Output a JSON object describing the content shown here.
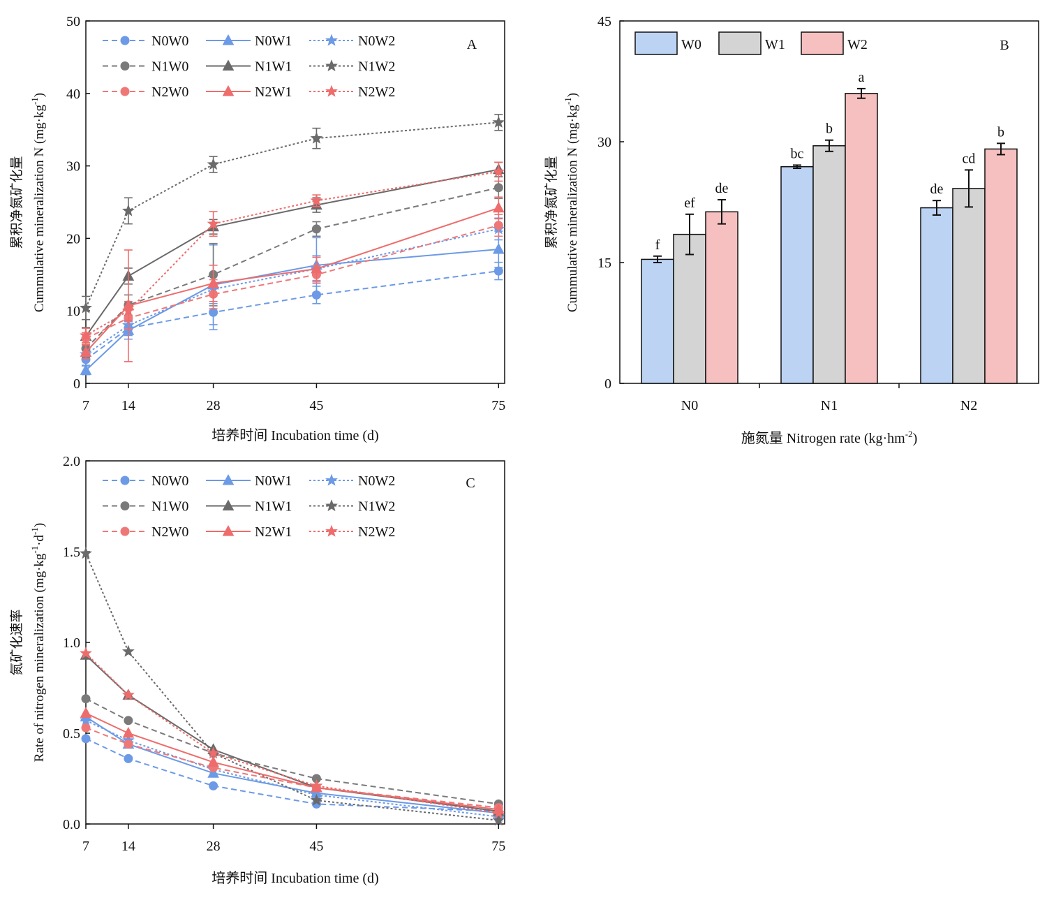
{
  "chart_data": [
    {
      "id": "A",
      "type": "line",
      "panel_label": "A",
      "xlabel": "培养时间 Incubation time (d)",
      "ylabel_cn": "累积净氮矿化量",
      "ylabel_en": "Cummulative mineralization N (mg·kg",
      "ylabel_sup": "-1",
      "ylabel_end": ")",
      "x": [
        7,
        14,
        28,
        45,
        75
      ],
      "xlim": [
        7,
        76
      ],
      "ylim": [
        0,
        50
      ],
      "yticks": [
        0,
        10,
        20,
        30,
        40,
        50
      ],
      "series": [
        {
          "name": "N0W0",
          "color": "#6c9ae6",
          "dash": "dash",
          "marker": "circle",
          "values": [
            3.3,
            7.6,
            9.8,
            12.2,
            15.5
          ],
          "err": [
            0.8,
            1.0,
            2.4,
            1.2,
            1.2
          ]
        },
        {
          "name": "N0W1",
          "color": "#6c9ae6",
          "dash": "solid",
          "marker": "triangle",
          "values": [
            1.8,
            7.3,
            13.6,
            16.3,
            18.5
          ],
          "err": [
            0.6,
            1.2,
            5.5,
            3.8,
            2.5
          ]
        },
        {
          "name": "N0W2",
          "color": "#6c9ae6",
          "dash": "dot",
          "marker": "star",
          "values": [
            4.0,
            8.0,
            13.0,
            15.8,
            21.3
          ],
          "err": [
            0.8,
            1.2,
            2.0,
            1.8,
            1.5
          ]
        },
        {
          "name": "N1W0",
          "color": "#7a7a7a",
          "dash": "dash",
          "marker": "circle",
          "values": [
            4.8,
            10.8,
            15.0,
            21.3,
            27.0
          ],
          "err": [
            1.2,
            1.4,
            4.3,
            1.0,
            1.5
          ]
        },
        {
          "name": "N1W1",
          "color": "#6a6a6a",
          "dash": "solid",
          "marker": "triangle",
          "values": [
            6.5,
            14.8,
            21.6,
            24.6,
            29.5
          ],
          "err": [
            1.2,
            1.1,
            1.0,
            1.0,
            1.0
          ]
        },
        {
          "name": "N1W2",
          "color": "#6a6a6a",
          "dash": "dot",
          "marker": "star",
          "values": [
            10.4,
            23.8,
            30.2,
            33.8,
            36.0
          ],
          "err": [
            1.6,
            1.8,
            1.1,
            1.4,
            1.1
          ]
        },
        {
          "name": "N2W0",
          "color": "#ee7878",
          "dash": "dash",
          "marker": "circle",
          "values": [
            6.2,
            9.0,
            12.3,
            15.0,
            21.8
          ],
          "err": [
            0.8,
            1.5,
            2.0,
            1.2,
            1.5
          ]
        },
        {
          "name": "N2W1",
          "color": "#ee6c6c",
          "dash": "solid",
          "marker": "triangle",
          "values": [
            4.3,
            10.7,
            13.8,
            15.8,
            24.2
          ],
          "err": [
            1.0,
            7.7,
            2.5,
            1.6,
            1.5
          ]
        },
        {
          "name": "N2W2",
          "color": "#ee6c6c",
          "dash": "dot",
          "marker": "star",
          "values": [
            6.6,
            10.0,
            22.0,
            25.2,
            29.2
          ],
          "err": [
            1.0,
            1.3,
            1.7,
            0.8,
            1.3
          ]
        }
      ]
    },
    {
      "id": "B",
      "type": "bar",
      "panel_label": "B",
      "xlabel_main": "施氮量 Nitrogen rate (kg·hm",
      "xlabel_sup": "-2",
      "xlabel_end": ")",
      "ylabel_cn": "累积净氮矿化量",
      "ylabel_en": "Cummulative mineralization N (mg·kg",
      "ylabel_sup": "-1",
      "ylabel_end": ")",
      "categories": [
        "N0",
        "N1",
        "N2"
      ],
      "ylim": [
        0,
        45
      ],
      "yticks": [
        0,
        15,
        30,
        45
      ],
      "series": [
        {
          "name": "W0",
          "color": "#bcd3f4",
          "values": [
            15.4,
            26.9,
            21.8
          ],
          "err": [
            0.4,
            0.2,
            0.9
          ],
          "letters": [
            "f",
            "bc",
            "de"
          ]
        },
        {
          "name": "W1",
          "color": "#d4d4d4",
          "values": [
            18.5,
            29.5,
            24.2
          ],
          "err": [
            2.5,
            0.7,
            2.3
          ],
          "letters": [
            "ef",
            "b",
            "cd"
          ]
        },
        {
          "name": "W2",
          "color": "#f7c0c0",
          "values": [
            21.3,
            36.0,
            29.1
          ],
          "err": [
            1.5,
            0.6,
            0.7
          ],
          "letters": [
            "de",
            "a",
            "b"
          ]
        }
      ]
    },
    {
      "id": "C",
      "type": "line",
      "panel_label": "C",
      "xlabel": "培养时间 Incubation time (d)",
      "ylabel_cn": "氮矿化速率",
      "ylabel_en": "Rate of nitrogen mineralization (mg·kg",
      "ylabel_sup1": "-1",
      "ylabel_mid": "·d",
      "ylabel_sup2": "-1",
      "ylabel_end": ")",
      "x": [
        7,
        14,
        28,
        45,
        75
      ],
      "xlim": [
        7,
        76
      ],
      "ylim": [
        0,
        2.0
      ],
      "yticks": [
        "0.0",
        "0.5",
        "1.0",
        "1.5",
        "2.0"
      ],
      "series": [
        {
          "name": "N0W0",
          "color": "#6c9ae6",
          "dash": "dash",
          "marker": "circle",
          "values": [
            0.47,
            0.36,
            0.21,
            0.11,
            0.07
          ]
        },
        {
          "name": "N0W1",
          "color": "#6c9ae6",
          "dash": "solid",
          "marker": "triangle",
          "values": [
            0.59,
            0.44,
            0.28,
            0.17,
            0.06
          ]
        },
        {
          "name": "N0W2",
          "color": "#6c9ae6",
          "dash": "dot",
          "marker": "star",
          "values": [
            0.57,
            0.46,
            0.3,
            0.16,
            0.04
          ]
        },
        {
          "name": "N1W0",
          "color": "#7a7a7a",
          "dash": "dash",
          "marker": "circle",
          "values": [
            0.69,
            0.57,
            0.39,
            0.25,
            0.11
          ]
        },
        {
          "name": "N1W1",
          "color": "#6a6a6a",
          "dash": "solid",
          "marker": "triangle",
          "values": [
            0.93,
            0.71,
            0.41,
            0.2,
            0.07
          ]
        },
        {
          "name": "N1W2",
          "color": "#6a6a6a",
          "dash": "dot",
          "marker": "star",
          "values": [
            1.49,
            0.95,
            0.39,
            0.13,
            0.02
          ]
        },
        {
          "name": "N2W0",
          "color": "#ee7878",
          "dash": "dash",
          "marker": "circle",
          "values": [
            0.53,
            0.44,
            0.31,
            0.2,
            0.09
          ]
        },
        {
          "name": "N2W1",
          "color": "#ee6c6c",
          "dash": "solid",
          "marker": "triangle",
          "values": [
            0.61,
            0.5,
            0.34,
            0.2,
            0.08
          ]
        },
        {
          "name": "N2W2",
          "color": "#ee6c6c",
          "dash": "dot",
          "marker": "star",
          "values": [
            0.94,
            0.71,
            0.39,
            0.21,
            0.06
          ]
        }
      ]
    }
  ]
}
